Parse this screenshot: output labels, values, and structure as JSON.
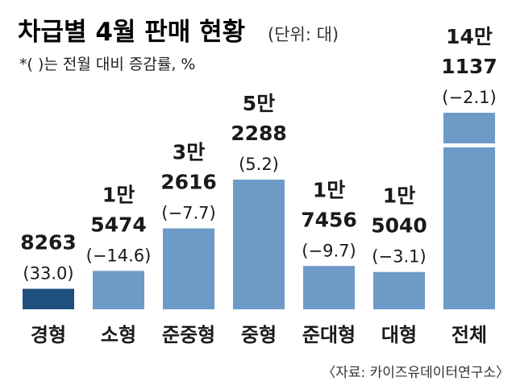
{
  "header": {
    "title": "차급별 4월 판매 현황",
    "unit": "(단위: 대)",
    "note": "*(  )는 전월 대비 증감률, %"
  },
  "source": "〈자료: 카이즈유데이터연구소〉",
  "colors": {
    "highlight": "#1f4f7d",
    "bar": "#6d9ac7",
    "text": "#1a1a1a"
  },
  "chart_data": {
    "type": "bar",
    "categories": [
      "경형",
      "소형",
      "준중형",
      "중형",
      "준대형",
      "대형",
      "전체"
    ],
    "values": [
      8263,
      15474,
      32616,
      52288,
      17456,
      15040,
      141137
    ],
    "changes": [
      33.0,
      -14.6,
      -7.7,
      5.2,
      -9.7,
      -3.1,
      -2.1
    ],
    "value_label_lines": [
      [
        "8263"
      ],
      [
        "1만",
        "5474"
      ],
      [
        "3만",
        "2616"
      ],
      [
        "5만",
        "2288"
      ],
      [
        "1만",
        "7456"
      ],
      [
        "1만",
        "5040"
      ],
      [
        "14만",
        "1137"
      ]
    ],
    "change_labels": [
      "(33.0)",
      "(−14.6)",
      "(−7.7)",
      "(5.2)",
      "(−9.7)",
      "(−3.1)",
      "(−2.1)"
    ],
    "highlight_category": "경형",
    "broken_bar_category": "전체",
    "title": "차급별 4월 판매 현황",
    "ylabel": "",
    "grid": false,
    "legend": false
  }
}
